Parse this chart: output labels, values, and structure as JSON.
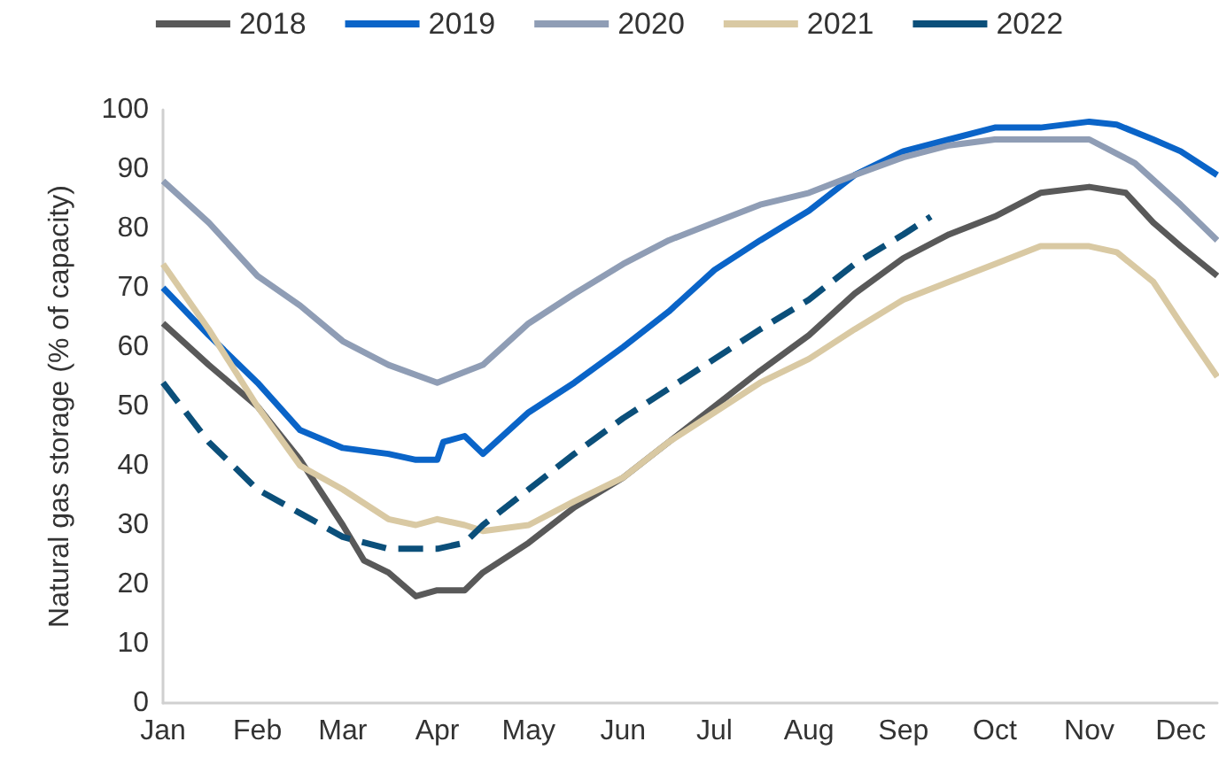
{
  "chart_data": {
    "type": "line",
    "ylabel": "Natural gas storage (% of capacity)",
    "legend": "top",
    "grid": false,
    "marker": "none",
    "line_style": "solid",
    "xlim": [
      "--01-01",
      "--12-13"
    ],
    "xticks": [
      {
        "value": "--01-01",
        "label": "Jan"
      },
      {
        "value": "--02-01",
        "label": "Feb"
      },
      {
        "value": "--03-01",
        "label": "Mar"
      },
      {
        "value": "--04-01",
        "label": "Apr"
      },
      {
        "value": "--05-01",
        "label": "May"
      },
      {
        "value": "--06-01",
        "label": "Jun"
      },
      {
        "value": "--07-01",
        "label": "Jul"
      },
      {
        "value": "--08-01",
        "label": "Aug"
      },
      {
        "value": "--09-01",
        "label": "Sep"
      },
      {
        "value": "--10-01",
        "label": "Oct"
      },
      {
        "value": "--11-01",
        "label": "Nov"
      },
      {
        "value": "--12-01",
        "label": "Dec"
      }
    ],
    "ylim": [
      0,
      100
    ],
    "yticks": [
      0,
      10,
      20,
      30,
      40,
      50,
      60,
      70,
      80,
      90,
      100
    ],
    "series": [
      {
        "name": "2018",
        "color": "#595959",
        "x": [
          "--01-01",
          "--01-16",
          "--02-01",
          "--02-15",
          "--03-01",
          "--03-08",
          "--03-16",
          "--03-25",
          "--04-01",
          "--04-10",
          "--04-16",
          "--05-01",
          "--05-16",
          "--06-01",
          "--06-16",
          "--07-01",
          "--07-16",
          "--08-01",
          "--08-16",
          "--09-01",
          "--09-16",
          "--10-01",
          "--10-16",
          "--11-01",
          "--11-13",
          "--11-22",
          "--12-01",
          "--12-13"
        ],
        "values": [
          64,
          57,
          50,
          41,
          30,
          24,
          22,
          18,
          19,
          19,
          22,
          27,
          33,
          38,
          44,
          50,
          56,
          62,
          69,
          75,
          79,
          82,
          86,
          87,
          86,
          81,
          77,
          72
        ]
      },
      {
        "name": "2019",
        "color": "#0a64c8",
        "x": [
          "--01-01",
          "--01-16",
          "--02-01",
          "--02-15",
          "--03-01",
          "--03-16",
          "--03-25",
          "--04-01",
          "--04-03",
          "--04-10",
          "--04-16",
          "--05-01",
          "--05-16",
          "--06-01",
          "--06-16",
          "--07-01",
          "--07-16",
          "--08-01",
          "--08-16",
          "--09-01",
          "--09-16",
          "--10-01",
          "--10-16",
          "--11-01",
          "--11-10",
          "--11-22",
          "--12-01",
          "--12-13"
        ],
        "values": [
          70,
          62,
          54,
          46,
          43,
          42,
          41,
          41,
          44,
          45,
          42,
          49,
          54,
          60,
          66,
          73,
          78,
          83,
          89,
          93,
          95,
          97,
          97,
          98,
          97.5,
          95,
          93,
          89
        ]
      },
      {
        "name": "2020",
        "color": "#8f9db5",
        "x": [
          "--01-01",
          "--01-16",
          "--02-01",
          "--02-15",
          "--03-01",
          "--03-16",
          "--04-01",
          "--04-16",
          "--05-01",
          "--05-16",
          "--06-01",
          "--06-16",
          "--07-01",
          "--07-16",
          "--08-01",
          "--08-16",
          "--09-01",
          "--09-16",
          "--10-01",
          "--10-16",
          "--11-01",
          "--11-16",
          "--12-01",
          "--12-13"
        ],
        "values": [
          88,
          81,
          72,
          67,
          61,
          57,
          54,
          57,
          64,
          69,
          74,
          78,
          81,
          84,
          86,
          89,
          92,
          94,
          95,
          95,
          95,
          91,
          84,
          78
        ]
      },
      {
        "name": "2021",
        "color": "#d9c9a3",
        "x": [
          "--01-01",
          "--01-16",
          "--02-01",
          "--02-15",
          "--03-01",
          "--03-16",
          "--03-25",
          "--04-01",
          "--04-10",
          "--04-16",
          "--05-01",
          "--05-16",
          "--06-01",
          "--06-16",
          "--07-01",
          "--07-16",
          "--08-01",
          "--08-16",
          "--09-01",
          "--09-16",
          "--10-01",
          "--10-16",
          "--11-01",
          "--11-10",
          "--11-22",
          "--12-01",
          "--12-13"
        ],
        "values": [
          74,
          63,
          50,
          40,
          36,
          31,
          30,
          31,
          30,
          29,
          30,
          34,
          38,
          44,
          49,
          54,
          58,
          63,
          68,
          71,
          74,
          77,
          77,
          76,
          71,
          64,
          55
        ]
      },
      {
        "name": "2022",
        "color": "#0b4f7a",
        "line_style": "dashed",
        "x": [
          "--01-01",
          "--01-16",
          "--02-01",
          "--02-15",
          "--03-01",
          "--03-16",
          "--04-01",
          "--04-10",
          "--04-16",
          "--05-01",
          "--05-16",
          "--06-01",
          "--06-16",
          "--07-01",
          "--07-16",
          "--08-01",
          "--08-16",
          "--09-01",
          "--09-10"
        ],
        "values": [
          54,
          44,
          36,
          32,
          28,
          26,
          26,
          27,
          30,
          36,
          42,
          48,
          53,
          58,
          63,
          68,
          74,
          79,
          82
        ]
      }
    ]
  }
}
